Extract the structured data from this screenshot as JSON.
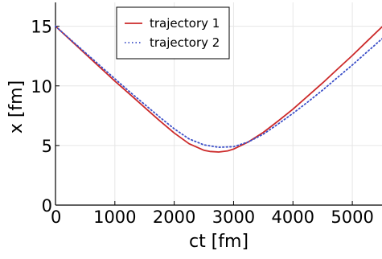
{
  "chart_data": {
    "type": "line",
    "xlabel": "ct [fm]",
    "ylabel": "x [fm]",
    "xlim": [
      0,
      5500
    ],
    "ylim": [
      0,
      17
    ],
    "xticks": [
      0,
      1000,
      2000,
      3000,
      4000,
      5000
    ],
    "yticks": [
      0,
      5,
      10,
      15
    ],
    "xtick_labels": [
      "0",
      "1000",
      "2000",
      "3000",
      "4000",
      "5000"
    ],
    "ytick_labels": [
      "0",
      "5",
      "10",
      "15"
    ],
    "grid": true,
    "legend_position": "top-center",
    "series": [
      {
        "name": "trajectory 1",
        "color": "#cc2a2a",
        "style": "solid",
        "x": [
          0,
          250,
          500,
          750,
          1000,
          1250,
          1500,
          1750,
          2000,
          2250,
          2500,
          2600,
          2750,
          2900,
          3000,
          3250,
          3500,
          3750,
          4000,
          4250,
          4500,
          4750,
          5000,
          5250,
          5500
        ],
        "y": [
          15.0,
          13.85,
          12.7,
          11.55,
          10.4,
          9.3,
          8.2,
          7.1,
          6.05,
          5.15,
          4.6,
          4.5,
          4.45,
          4.55,
          4.7,
          5.3,
          6.1,
          7.05,
          8.05,
          9.15,
          10.25,
          11.4,
          12.55,
          13.75,
          14.95
        ]
      },
      {
        "name": "trajectory 2",
        "color": "#3b4fc8",
        "style": "dotted",
        "x": [
          0,
          250,
          500,
          750,
          1000,
          1250,
          1500,
          1750,
          2000,
          2250,
          2500,
          2750,
          3000,
          3250,
          3500,
          3750,
          4000,
          4250,
          4500,
          4750,
          5000,
          5250,
          5500
        ],
        "y": [
          15.0,
          13.9,
          12.8,
          11.7,
          10.6,
          9.5,
          8.45,
          7.4,
          6.4,
          5.55,
          5.05,
          4.85,
          4.9,
          5.3,
          5.95,
          6.8,
          7.7,
          8.65,
          9.65,
          10.7,
          11.75,
          12.85,
          13.95
        ]
      }
    ]
  }
}
